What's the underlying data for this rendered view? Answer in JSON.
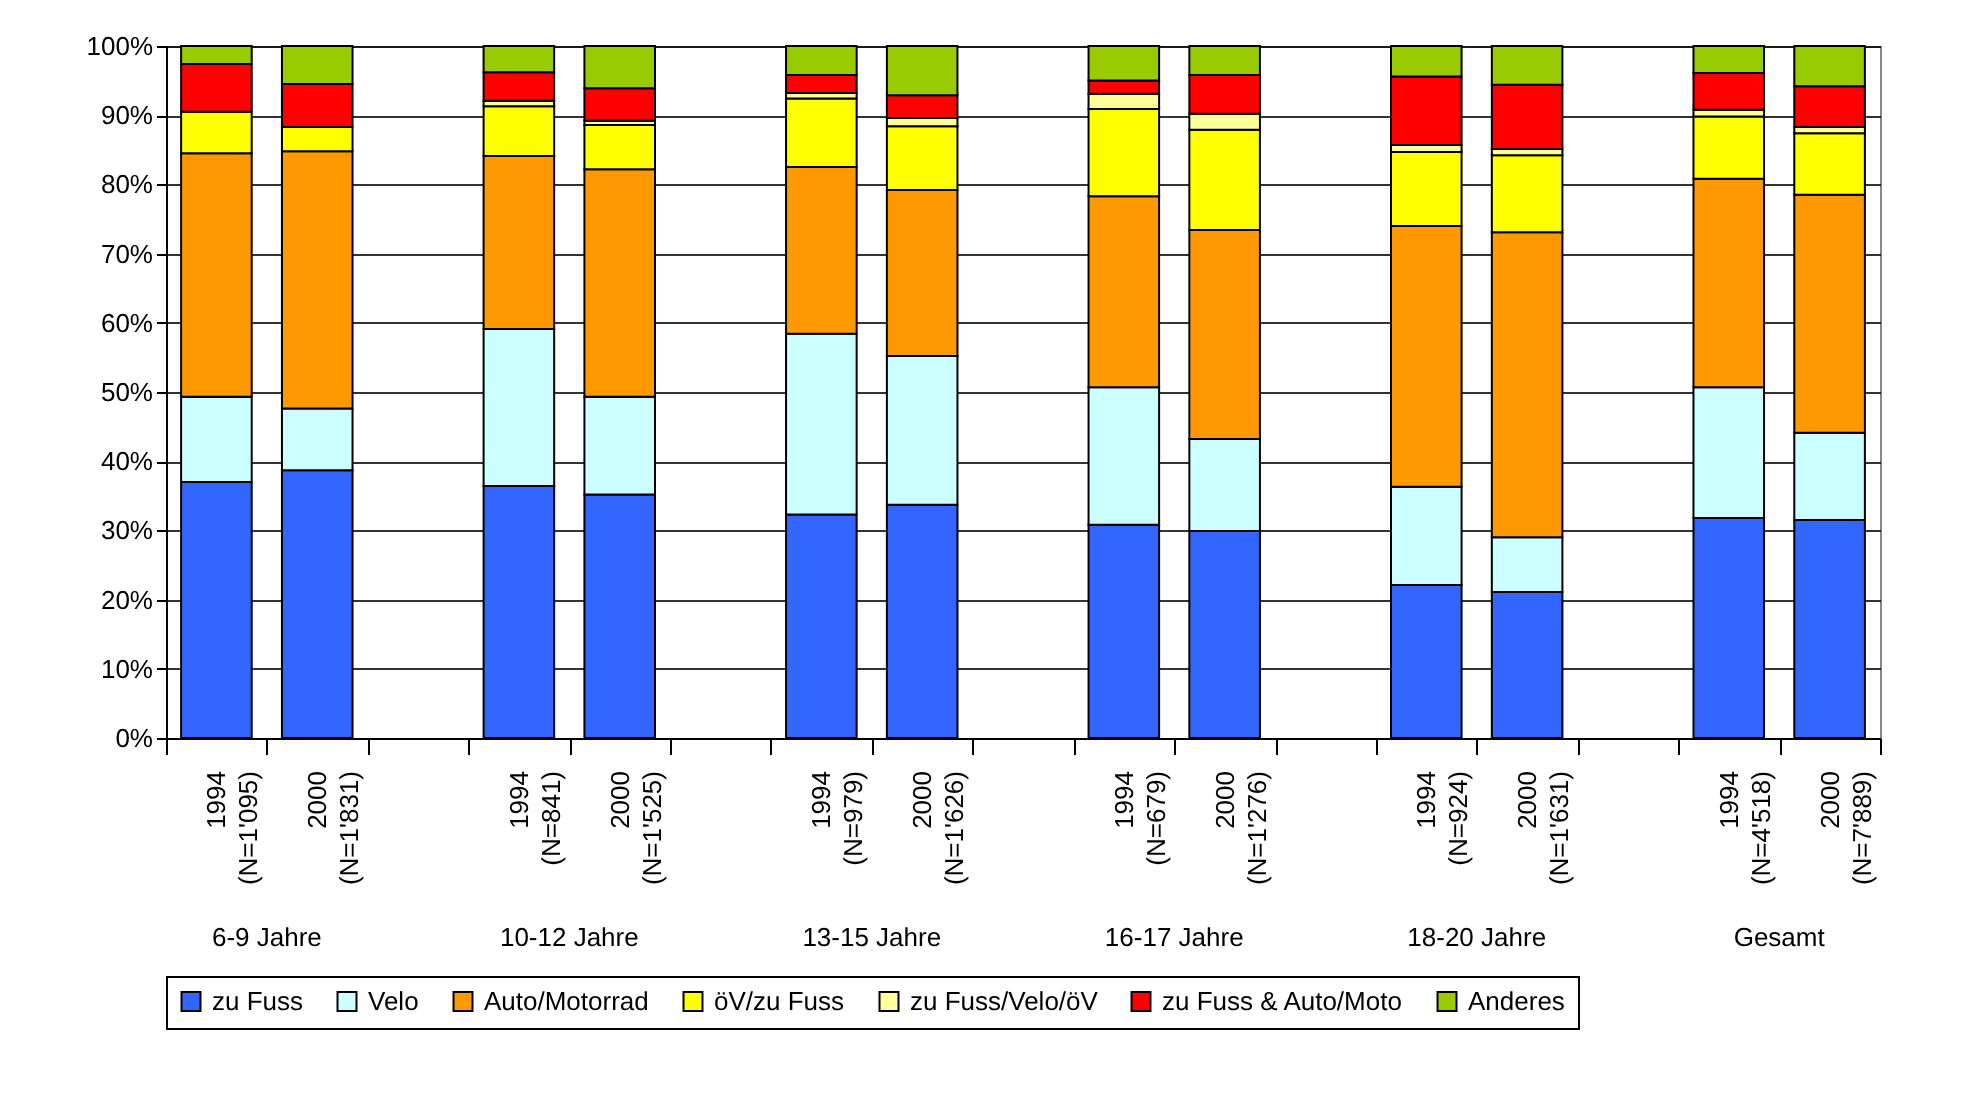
{
  "chart_data": {
    "type": "bar",
    "stacked": true,
    "categories": [
      "1994 (N=1'095)",
      "2000 (N=1'831)",
      null,
      "1994 (N=841)",
      "2000 (N=1'525)",
      null,
      "1994 (N=979)",
      "2000 (N=1'626)",
      null,
      "1994 (N=679)",
      "2000 (N=1'276)",
      null,
      "1994 (N=924)",
      "2000 (N=1'631)",
      null,
      "1994 (N=4'518)",
      "2000 (N=7'889)"
    ],
    "series": [
      {
        "name": "zu Fuss",
        "color": "#3366ff",
        "values": [
          37,
          38.7,
          null,
          36.4,
          35.2,
          null,
          32.3,
          33.7,
          null,
          30.8,
          29.9,
          null,
          22.1,
          21.1,
          null,
          31.8,
          31.5
        ]
      },
      {
        "name": "Velo",
        "color": "#ccffff",
        "values": [
          12.3,
          8.9,
          null,
          22.7,
          14.1,
          null,
          26.1,
          21.5,
          null,
          19.9,
          13.3,
          null,
          14.2,
          7.9,
          null,
          18.9,
          12.6
        ]
      },
      {
        "name": "Auto/Motorrad",
        "color": "#ff9900",
        "values": [
          35.2,
          37.2,
          null,
          25.0,
          32.9,
          null,
          24.1,
          24.0,
          null,
          27.6,
          30.2,
          null,
          37.7,
          44.1,
          null,
          30.1,
          34.4
        ]
      },
      {
        "name": "öV/zu Fuss",
        "color": "#ffff00",
        "values": [
          6,
          3.5,
          null,
          7.2,
          6.4,
          null,
          9.9,
          9.2,
          null,
          12.6,
          14.5,
          null,
          10.7,
          11.1,
          null,
          9.0,
          8.9
        ]
      },
      {
        "name": "zu Fuss/Velo/öV",
        "color": "#ffff99",
        "values": [
          null,
          null,
          null,
          0.8,
          0.6,
          null,
          0.8,
          1.2,
          null,
          2.2,
          2.3,
          null,
          1.0,
          0.9,
          null,
          1.0,
          0.9
        ]
      },
      {
        "name": "zu Fuss & Auto/Moto",
        "color": "#ff0000",
        "values": [
          6.9,
          6.2,
          null,
          4.1,
          4.7,
          null,
          2.6,
          3.3,
          null,
          1.9,
          5.6,
          null,
          9.9,
          9.3,
          null,
          5.3,
          5.9
        ]
      },
      {
        "name": "Anderes",
        "color": "#99cc00",
        "values": [
          2.6,
          5.5,
          null,
          3.8,
          6.1,
          null,
          4.2,
          7.1,
          null,
          5.0,
          4.2,
          null,
          4.4,
          5.6,
          null,
          3.9,
          5.8
        ]
      }
    ],
    "annotations": [
      "6-9 Jahre",
      "10-12 Jahre",
      "13-15 Jahre",
      "16-17 Jahre",
      "18-20 Jahre",
      "Gesamt"
    ],
    "ylim": [
      0,
      100
    ],
    "yticks": [
      {
        "value": 0,
        "label": "0%"
      },
      {
        "value": 10,
        "label": "10%"
      },
      {
        "value": 20,
        "label": "20%"
      },
      {
        "value": 30,
        "label": "30%"
      },
      {
        "value": 40,
        "label": "40%"
      },
      {
        "value": 50,
        "label": "50%"
      },
      {
        "value": 60,
        "label": "60%"
      },
      {
        "value": 70,
        "label": "70%"
      },
      {
        "value": 80,
        "label": "80%"
      },
      {
        "value": 90,
        "label": "90%"
      },
      {
        "value": 100,
        "label": "100%"
      }
    ],
    "grid": "y",
    "legend": "bottom"
  }
}
